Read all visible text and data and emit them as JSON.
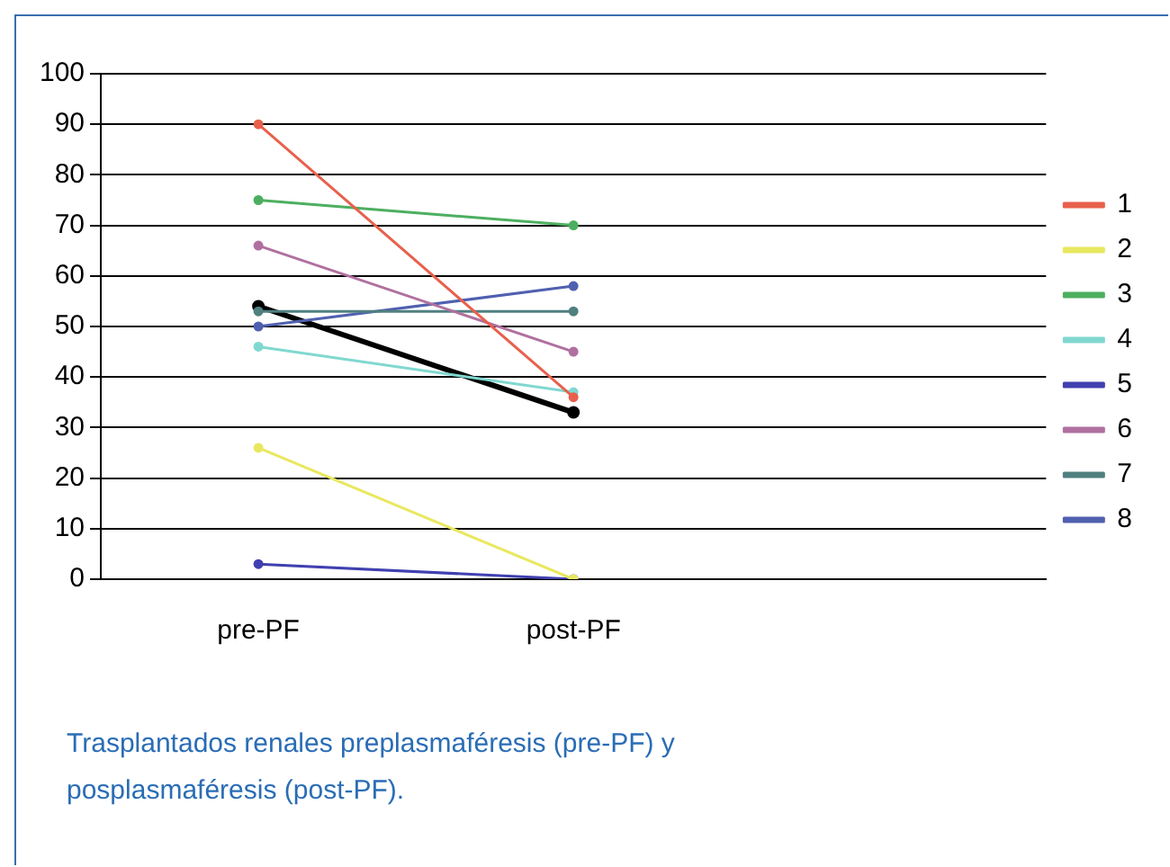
{
  "chart_data": {
    "type": "line",
    "categories": [
      "pre-PF",
      "post-PF",
      null
    ],
    "series": [
      {
        "name": "1",
        "color": "#e8604c",
        "values": [
          90,
          36,
          null
        ]
      },
      {
        "name": "2",
        "color": "#e8e860",
        "values": [
          26,
          0,
          null
        ]
      },
      {
        "name": "3",
        "color": "#4caf60",
        "values": [
          75,
          70,
          null
        ]
      },
      {
        "name": "4",
        "color": "#80d8d0",
        "values": [
          46,
          37,
          null
        ]
      },
      {
        "name": "5",
        "color": "#4040b0",
        "values": [
          3,
          0,
          null
        ]
      },
      {
        "name": "6",
        "color": "#b070a0",
        "values": [
          66,
          45,
          null
        ]
      },
      {
        "name": "7",
        "color": "#508080",
        "values": [
          53,
          53,
          null
        ]
      },
      {
        "name": "8",
        "color": "#5060b0",
        "values": [
          50,
          58,
          null
        ]
      },
      {
        "color": "#000000",
        "values": [
          54,
          33,
          null
        ]
      }
    ],
    "ylim": [
      0,
      100
    ],
    "yticks": [
      0,
      10,
      20,
      30,
      40,
      50,
      60,
      70,
      80,
      90,
      100
    ],
    "grid": "y",
    "legend": "right",
    "marker": "circle",
    "annotations": [
      "Trasplantados renales preplasmaféresis (pre-PF) y posplasmaféresis (post-PF)."
    ]
  }
}
